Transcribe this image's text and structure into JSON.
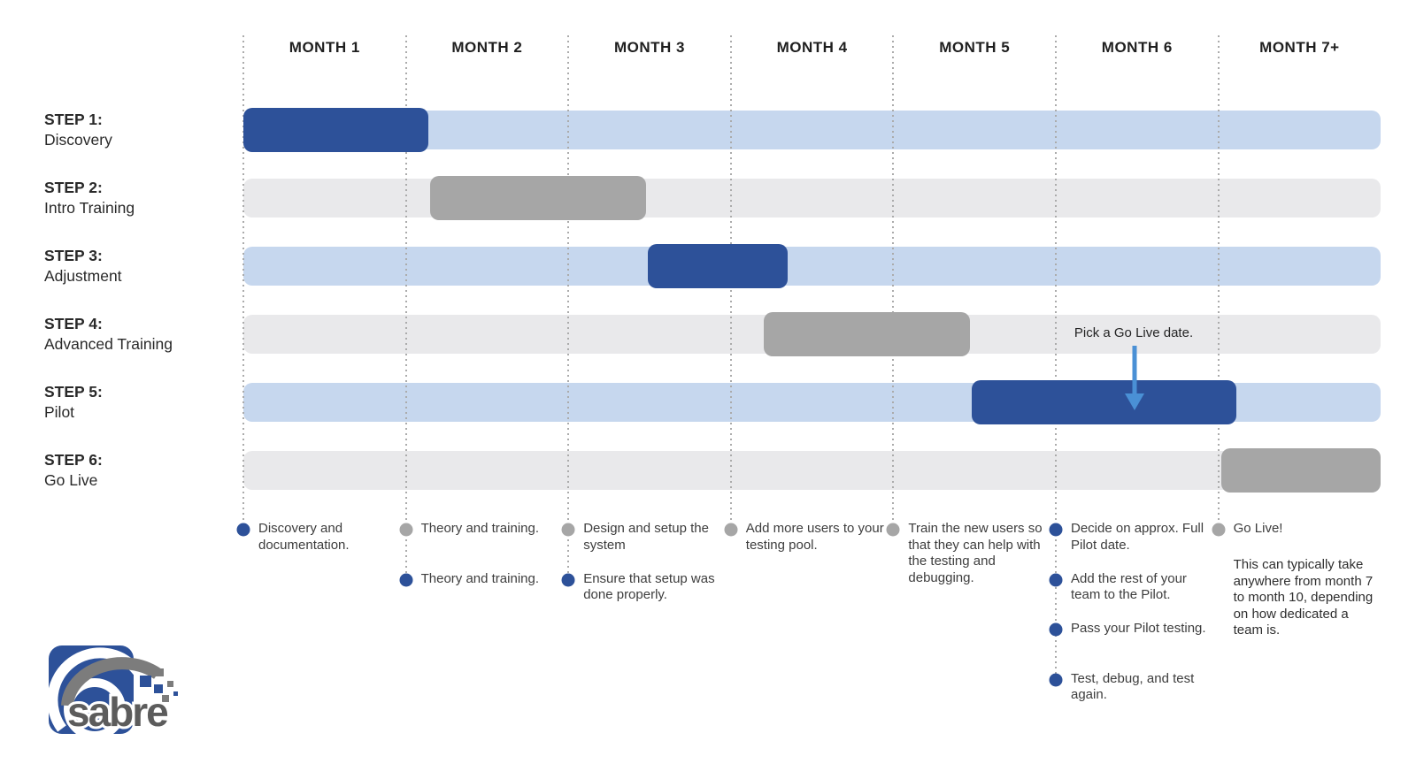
{
  "colors": {
    "dark_blue": "#2d5199",
    "light_blue": "#c6d7ee",
    "bar_gray": "#a6a6a6",
    "track_gray": "#e9e9eb",
    "arrow_blue": "#4a90d5",
    "dotted_line": "#ababab",
    "logo_blue": "#2d5199",
    "logo_gray": "#5c5c5c",
    "logo_swoosh_gray": "#7c7c7c"
  },
  "chart_data": {
    "type": "gantt",
    "title": "",
    "x_axis": {
      "unit": "months",
      "labels": [
        "MONTH 1",
        "MONTH 2",
        "MONTH 3",
        "MONTH 4",
        "MONTH 5",
        "MONTH 6",
        "MONTH 7+"
      ],
      "range": [
        0,
        7
      ],
      "gridlines": "dotted-vertical"
    },
    "tasks": [
      {
        "step": "STEP 1:",
        "name": "Discovery",
        "start": 0.0,
        "end": 1.14,
        "bar_color": "dark_blue",
        "track_color": "light_blue"
      },
      {
        "step": "STEP 2:",
        "name": "Intro Training",
        "start": 1.15,
        "end": 2.48,
        "bar_color": "bar_gray",
        "track_color": "track_gray"
      },
      {
        "step": "STEP 3:",
        "name": "Adjustment",
        "start": 2.49,
        "end": 3.35,
        "bar_color": "dark_blue",
        "track_color": "light_blue"
      },
      {
        "step": "STEP 4:",
        "name": "Advanced Training",
        "start": 3.2,
        "end": 4.47,
        "bar_color": "bar_gray",
        "track_color": "track_gray"
      },
      {
        "step": "STEP 5:",
        "name": "Pilot",
        "start": 4.48,
        "end": 6.11,
        "bar_color": "dark_blue",
        "track_color": "light_blue"
      },
      {
        "step": "STEP 6:",
        "name": "Go Live",
        "start": 6.02,
        "end": 7.0,
        "bar_color": "bar_gray",
        "track_color": "track_gray"
      }
    ],
    "milestones": [
      {
        "month_line": 0,
        "items": [
          {
            "dot": "blue",
            "text": "Discovery and documentation."
          }
        ]
      },
      {
        "month_line": 1,
        "items": [
          {
            "dot": "gray",
            "text": "Theory and training."
          },
          {
            "dot": "blue",
            "text": "Theory and training."
          }
        ]
      },
      {
        "month_line": 2,
        "items": [
          {
            "dot": "gray",
            "text": "Design and setup the system"
          },
          {
            "dot": "blue",
            "text": "Ensure that setup was done properly."
          }
        ]
      },
      {
        "month_line": 3,
        "items": [
          {
            "dot": "gray",
            "text": "Add more users to your testing pool."
          }
        ]
      },
      {
        "month_line": 4,
        "items": [
          {
            "dot": "gray",
            "text": "Train the new users so that they can help with the testing and debugging."
          }
        ]
      },
      {
        "month_line": 5,
        "items": [
          {
            "dot": "blue",
            "text": "Decide on approx. Full Pilot date."
          },
          {
            "dot": "blue",
            "text": "Add the rest of your team to the Pilot."
          },
          {
            "dot": "blue",
            "text": "Pass your Pilot testing."
          },
          {
            "dot": "blue",
            "text": "Test, debug, and test again."
          }
        ]
      },
      {
        "month_line": 6,
        "items": [
          {
            "dot": "gray",
            "text": "Go Live!"
          }
        ],
        "note": "This can typically take anywhere from month 7 to month 10, depending on how dedicated a team is."
      }
    ],
    "callout": {
      "text": "Pick a Go Live date.",
      "arrow": "down",
      "at_month": 5.48,
      "points_to": "STEP 5: Pilot"
    }
  },
  "logo": {
    "text": "sabre"
  }
}
